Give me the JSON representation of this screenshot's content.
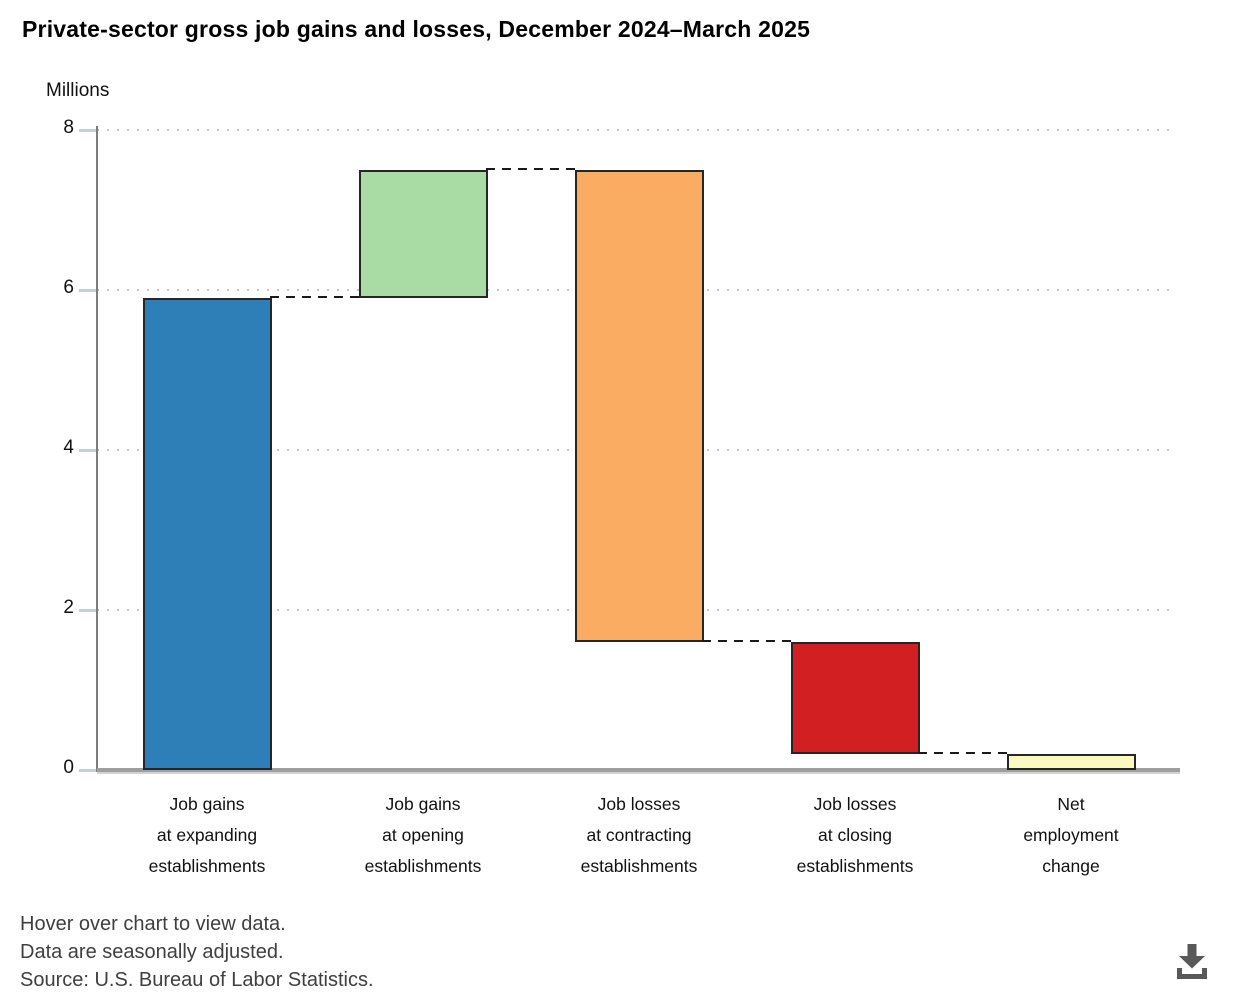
{
  "title": "Private-sector gross job gains and losses, December 2024–March 2025",
  "axis_unit_label": "Millions",
  "footer": {
    "line1": "Hover over chart to view data.",
    "line2": "Data are seasonally adjusted.",
    "line3": "Source: U.S. Bureau of Labor Statistics."
  },
  "icons": {
    "download": "download-icon"
  },
  "colors": {
    "bar_border": "#262626",
    "gridline": "#c6c6c6",
    "tick": "#bcd0e5",
    "axis": "#7d7d7d",
    "baseline": "#9e9e9e",
    "baseline_light": "#d2d2d2",
    "connector": "#1a1a1a",
    "footer_text": "#3f3f3f",
    "icon": "#595959"
  },
  "chart_data": {
    "type": "bar",
    "subtype": "waterfall",
    "title": "Private-sector gross job gains and losses, December 2024–March 2025",
    "xlabel": "",
    "ylabel": "Millions",
    "ylim": [
      0,
      8
    ],
    "yticks": [
      0,
      2,
      4,
      6,
      8
    ],
    "grid": "horizontal-dotted",
    "legend": "none",
    "categories": [
      "Job gains at expanding establishments",
      "Job gains at opening establishments",
      "Job losses at contracting establishments",
      "Job losses at closing establishments",
      "Net employment change"
    ],
    "segments": [
      {
        "key": "job-gains-expanding",
        "label_lines": [
          "Job gains",
          "at expanding",
          "establishments"
        ],
        "start": 0,
        "end": 5.9,
        "value": 5.9,
        "color": "#2E7EB8"
      },
      {
        "key": "job-gains-opening",
        "label_lines": [
          "Job gains",
          "at opening",
          "establishments"
        ],
        "start": 5.9,
        "end": 7.5,
        "value": 1.6,
        "color": "#A9DCA4"
      },
      {
        "key": "job-losses-contracting",
        "label_lines": [
          "Job losses",
          "at contracting",
          "establishments"
        ],
        "start": 7.5,
        "end": 1.6,
        "value": -5.9,
        "color": "#FBAC63"
      },
      {
        "key": "job-losses-closing",
        "label_lines": [
          "Job losses",
          "at closing",
          "establishments"
        ],
        "start": 1.6,
        "end": 0.2,
        "value": -1.4,
        "color": "#D21F21"
      },
      {
        "key": "net-employment-change",
        "label_lines": [
          "Net",
          "employment",
          "change"
        ],
        "start": 0,
        "end": 0.2,
        "value": 0.2,
        "color": "#FAFAC0"
      }
    ],
    "connectors": [
      {
        "between": [
          0,
          1
        ],
        "level": 5.9
      },
      {
        "between": [
          1,
          2
        ],
        "level": 7.5
      },
      {
        "between": [
          2,
          3
        ],
        "level": 1.6
      },
      {
        "between": [
          3,
          4
        ],
        "level": 0.2
      }
    ]
  }
}
